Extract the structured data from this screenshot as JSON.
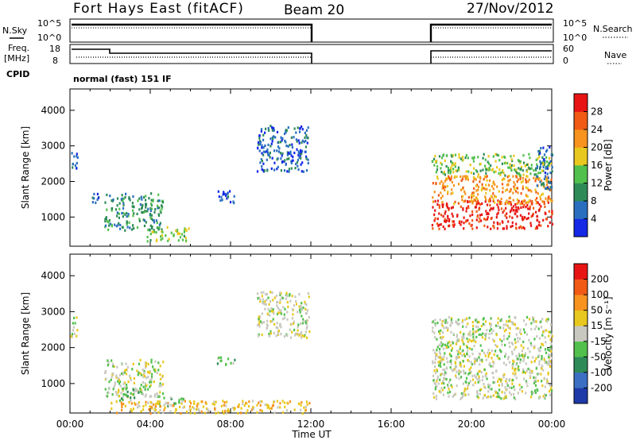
{
  "header": {
    "title": "Fort Hays East (fitACF)",
    "beam": "Beam 20",
    "date": "27/Nov/2012"
  },
  "strip": {
    "nsky_label": "N.Sky",
    "nsky_ticks": [
      "10^5",
      "10^0"
    ],
    "nsearch_label": "N.Search",
    "nsearch_ticks": [
      "10^5",
      "10^0"
    ],
    "freq_label": "Freq.",
    "freq_unit": "[MHz]",
    "freq_ticks": [
      "18",
      "8"
    ],
    "nave_label": "Nave",
    "nave_ticks": [
      "60",
      "0"
    ],
    "cpid_label": "CPID",
    "mode_text": "normal (fast) 151 IF"
  },
  "chart_data": {
    "type": "heatmap",
    "x_label": "Time UT",
    "x_ticks": [
      "00:00",
      "04:00",
      "08:00",
      "12:00",
      "16:00",
      "20:00",
      "00:00"
    ],
    "x_tick_hours": [
      0,
      4,
      8,
      12,
      16,
      20,
      24
    ],
    "xlim_hours": [
      0,
      24
    ],
    "data_gap_hours": [
      12,
      18
    ],
    "y_label": "Slant Range [km]",
    "y_ticks": [
      1000,
      2000,
      3000,
      4000
    ],
    "ylim_km": [
      180,
      4600
    ],
    "panels": [
      {
        "name": "power",
        "colorbar_label": "Power [dB]",
        "colorbar_ticks": [
          "4",
          "8",
          "12",
          "16",
          "20",
          "24",
          "28"
        ],
        "colorbar_colors": [
          "#1428e6",
          "#2a6fbf",
          "#2e8b57",
          "#52c04c",
          "#e8c81e",
          "#f7931e",
          "#f05a14",
          "#e81414"
        ],
        "regions": [
          {
            "t": [
              0.0,
              0.35
            ],
            "r": [
              2300,
              2900
            ],
            "level": 1
          },
          {
            "t": [
              1.0,
              1.4
            ],
            "r": [
              1400,
              1800
            ],
            "level": 1
          },
          {
            "t": [
              1.7,
              4.6
            ],
            "r": [
              650,
              1700
            ],
            "level": 2
          },
          {
            "t": [
              3.8,
              5.9
            ],
            "r": [
              350,
              750
            ],
            "level": 3
          },
          {
            "t": [
              7.3,
              8.2
            ],
            "r": [
              1400,
              1800
            ],
            "level": 1
          },
          {
            "t": [
              9.3,
              11.9
            ],
            "r": [
              2300,
              3600
            ],
            "level": 1
          },
          {
            "t": [
              18.0,
              24.0
            ],
            "r": [
              700,
              1500
            ],
            "level": 7
          },
          {
            "t": [
              18.0,
              24.0
            ],
            "r": [
              1400,
              2200
            ],
            "level": 5
          },
          {
            "t": [
              18.0,
              24.0
            ],
            "r": [
              2200,
              2800
            ],
            "level": 3
          },
          {
            "t": [
              23.2,
              24.0
            ],
            "r": [
              1800,
              3000
            ],
            "level": 1
          }
        ]
      },
      {
        "name": "velocity",
        "colorbar_label": "Velocity [m s⁻¹]",
        "colorbar_ticks": [
          "200",
          "100",
          "50",
          "15",
          "-15",
          "-50",
          "-100",
          "-200"
        ],
        "colorbar_colors": [
          "#1e3aa8",
          "#3b6fc4",
          "#2e8b57",
          "#52c04c",
          "#c8c8c0",
          "#e8c81e",
          "#f7931e",
          "#f05a14",
          "#e81414"
        ],
        "regions": [
          {
            "t": [
              0.0,
              0.35
            ],
            "r": [
              2300,
              2900
            ],
            "level": 4
          },
          {
            "t": [
              1.7,
              4.6
            ],
            "r": [
              650,
              1700
            ],
            "level": 4
          },
          {
            "t": [
              2.4,
              3.5
            ],
            "r": [
              550,
              900
            ],
            "level": 3
          },
          {
            "t": [
              4.4,
              5.8
            ],
            "r": [
              400,
              650
            ],
            "level": 3
          },
          {
            "t": [
              7.3,
              8.2
            ],
            "r": [
              1550,
              1800
            ],
            "level": 3
          },
          {
            "t": [
              9.3,
              11.9
            ],
            "r": [
              2300,
              3600
            ],
            "level": 4
          },
          {
            "t": [
              18.0,
              24.0
            ],
            "r": [
              600,
              2900
            ],
            "level": 4
          },
          {
            "t": [
              2.0,
              11.9
            ],
            "r": [
              200,
              550
            ],
            "level": 5
          }
        ]
      }
    ]
  }
}
